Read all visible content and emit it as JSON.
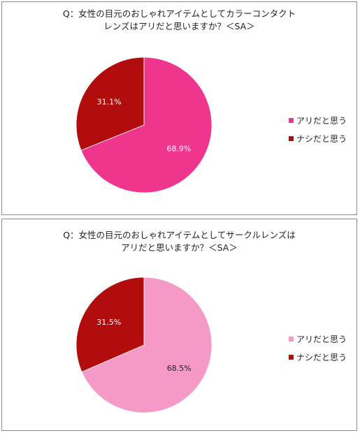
{
  "chart_data": [
    {
      "type": "pie",
      "title": "Q：女性の目元のおしゃれアイテムとしてカラーコンタクト\nレンズはアリだと思いますか？＜SA＞",
      "categories": [
        "アリだと思う",
        "ナシだと思う"
      ],
      "values": [
        68.9,
        31.1
      ],
      "labels": [
        "68.9%",
        "31.1%"
      ],
      "colors": [
        "#f0358f",
        "#b20d0d"
      ],
      "legend_position": "right"
    },
    {
      "type": "pie",
      "title": "Q：女性の目元のおしゃれアイテムとしてサークルレンズは\nアリだと思いますか？＜SA＞",
      "categories": [
        "アリだと思う",
        "ナシだと思う"
      ],
      "values": [
        68.5,
        31.5
      ],
      "labels": [
        "68.5%",
        "31.5%"
      ],
      "colors": [
        "#f59ac6",
        "#b20d0d"
      ],
      "legend_position": "right"
    }
  ]
}
